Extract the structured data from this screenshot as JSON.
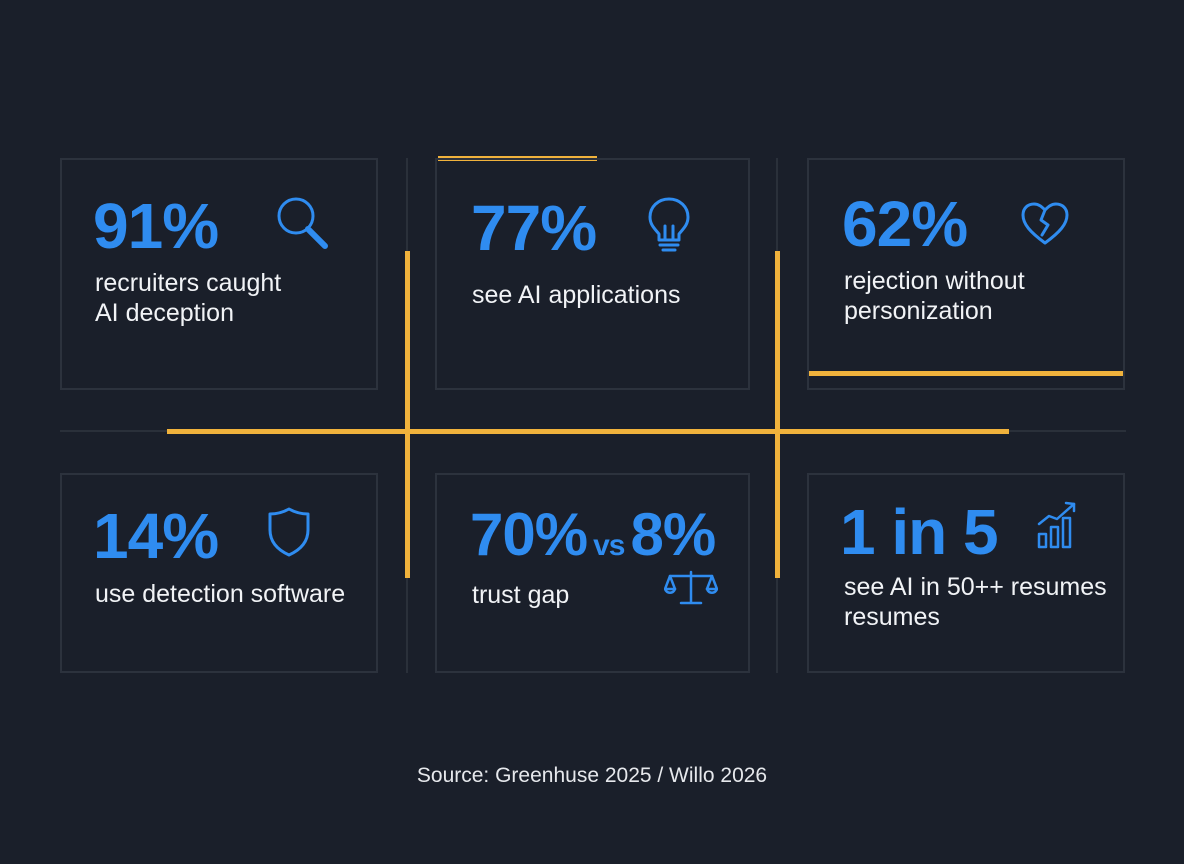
{
  "cards": [
    {
      "stat": "91%",
      "label": "recruiters caught\nAI deception",
      "icon": "magnifier-icon"
    },
    {
      "stat": "77%",
      "label": "see AI applications",
      "icon": "lightbulb-icon"
    },
    {
      "stat": "62%",
      "label": "rejection without\npersonization",
      "icon": "broken-heart-icon"
    },
    {
      "stat": "14%",
      "label": "use detection software",
      "icon": "shield-icon"
    },
    {
      "stat_a": "70%",
      "stat_vs": "vs",
      "stat_b": "8%",
      "label": "trust gap",
      "icon": "scales-icon"
    },
    {
      "stat": "1 in 5",
      "label": "see AI in 50++ resumes\nresumes",
      "icon": "bar-chart-trend-icon"
    }
  ],
  "source": "Source: Greenhuse 2025 / Willo 2026",
  "colors": {
    "background": "#1a1f2a",
    "accent_blue": "#2f8cf0",
    "accent_gold": "#f0b23c",
    "card_border": "#2c323d",
    "text": "#f1f3f6"
  }
}
